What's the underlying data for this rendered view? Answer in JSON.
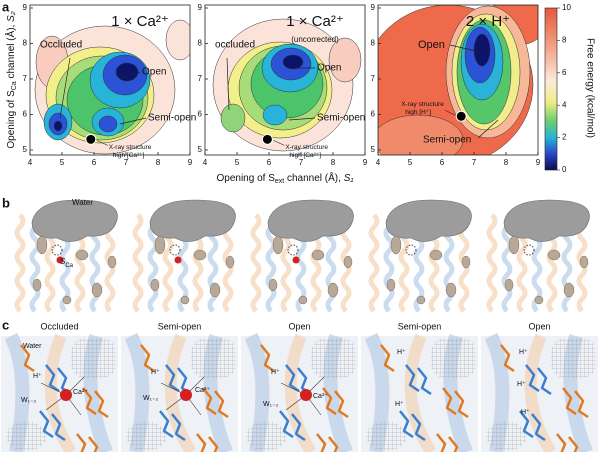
{
  "panel_a": {
    "label": "a",
    "maps": [
      {
        "title": "1 × Ca²⁺",
        "labels": [
          "Occluded",
          "Open",
          "Semi-open"
        ],
        "xray": [
          "X-ray structure",
          "high [Ca²⁺]"
        ]
      },
      {
        "title": "1 × Ca²⁺",
        "subtitle": "(uncorrected)",
        "labels": [
          "occluded",
          "Open",
          "Semi-open"
        ],
        "xray": [
          "X-ray structure",
          "high [Ca²⁺]"
        ]
      },
      {
        "title": "2 × H⁺",
        "labels": [
          "Open",
          "Semi-open"
        ],
        "xray": [
          "X-ray structure",
          "high [H⁺]"
        ]
      }
    ],
    "xticks": [
      4,
      5,
      6,
      7,
      8,
      9
    ],
    "yticks": [
      5,
      6,
      7,
      8,
      9
    ],
    "x_label": [
      "Opening of S",
      "ext",
      " channel (Å), ",
      "S₁"
    ],
    "y_label": [
      "Opening of S",
      "Ca",
      " channel (Å), ",
      "S₂"
    ],
    "colorbar": {
      "ticks": [
        0,
        2,
        4,
        6,
        8,
        10
      ],
      "label": "Free energy (kcal/mol)"
    }
  },
  "panel_b": {
    "label": "b",
    "water": "Water",
    "site": [
      "S",
      "Ca"
    ]
  },
  "panel_c": {
    "label": "c",
    "states": [
      "Occluded",
      "Semi-open",
      "Open",
      "Semi-open",
      "Open"
    ],
    "annotations": [
      [
        "Water",
        "H⁺",
        "W₁₋₂",
        "Ca²⁺"
      ],
      [
        "H⁺",
        "W₁₋₂",
        "Ca²⁺"
      ],
      [
        "H⁺",
        "W₁₋₂",
        "Ca²⁺"
      ],
      [
        "H⁺",
        "H⁺"
      ],
      [
        "H⁺",
        "H⁺",
        "H⁺"
      ]
    ]
  }
}
